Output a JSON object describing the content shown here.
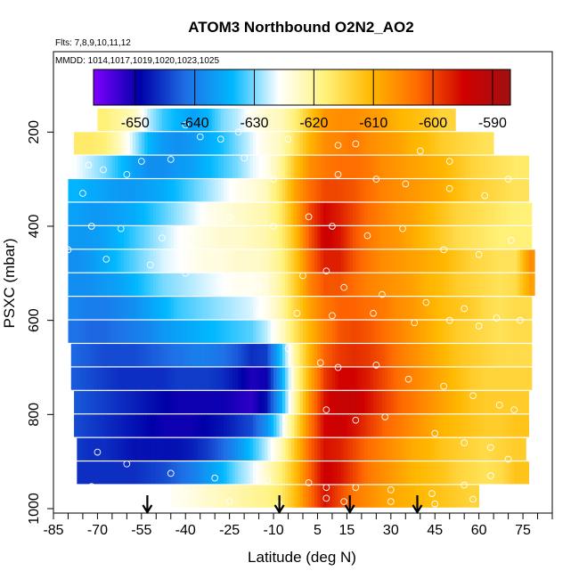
{
  "chart_data": {
    "type": "heatmap",
    "title": "ATOM3 Northbound O2N2_AO2",
    "subtitle_flights": "Flts: 7,8,9,10,11,12",
    "subtitle_dates": "MMDD: 1014,1017,1019,1020,1023,1025",
    "xlabel": "Latitude (deg N)",
    "ylabel": "PSXC (mbar)",
    "xlim": [
      -85,
      85
    ],
    "ylim": [
      1000,
      0
    ],
    "x_ticks": [
      -85,
      -70,
      -55,
      -40,
      -25,
      -10,
      5,
      15,
      30,
      45,
      60,
      75
    ],
    "y_ticks": [
      200,
      400,
      600,
      800,
      1000
    ],
    "colorbar": {
      "range": [
        -657,
        -587
      ],
      "ticks": [
        -650,
        -640,
        -630,
        -620,
        -610,
        -600,
        -590
      ],
      "colors": [
        "#7f00ff",
        "#0000a8",
        "#1f6fe6",
        "#00b8ff",
        "#ffffff",
        "#fff27a",
        "#ffb800",
        "#ff6a00",
        "#d00000",
        "#a01010"
      ]
    },
    "lat_bins": [
      -77.5,
      -72.5,
      -67.5,
      -62.5,
      -57.5,
      -52.5,
      -47.5,
      -42.5,
      -37.5,
      -32.5,
      -27.5,
      -22.5,
      -17.5,
      -12.5,
      -7.5,
      -2.5,
      2.5,
      7.5,
      12.5,
      17.5,
      22.5,
      27.5,
      32.5,
      37.5,
      42.5,
      47.5,
      52.5,
      57.5,
      62.5,
      67.5,
      72.5,
      77.5
    ],
    "rows": [
      {
        "p": 175,
        "xr": [
          -70,
          52
        ],
        "v": [
          null,
          null,
          -618,
          -620,
          -622,
          -628,
          -632,
          -634,
          -636,
          -634,
          -630,
          -628,
          -625,
          -623,
          -622,
          -618,
          -612,
          -607,
          -606,
          -606,
          -607,
          -608,
          -610,
          -611,
          -612,
          -614,
          null,
          null,
          null,
          null,
          null,
          null
        ]
      },
      {
        "p": 225,
        "xr": [
          -78,
          65
        ],
        "v": [
          -617,
          -617,
          -618,
          -622,
          -628,
          -634,
          -637,
          -638,
          -637,
          -635,
          -633,
          -630,
          -627,
          -624,
          -622,
          -616,
          -610,
          -606,
          -605,
          -604,
          -606,
          -607,
          -608,
          -610,
          -611,
          -613,
          -614,
          -615,
          -616,
          null,
          null,
          null
        ]
      },
      {
        "p": 275,
        "xr": [
          -79,
          77
        ],
        "v": [
          -626,
          -628,
          -630,
          -633,
          -636,
          -638,
          -638,
          -637,
          -636,
          -634,
          -632,
          -630,
          -627,
          -625,
          -620,
          -612,
          -606,
          -604,
          -603,
          -603,
          -604,
          -606,
          -607,
          -608,
          -609,
          -610,
          -612,
          -614,
          -615,
          -616,
          -617,
          null
        ]
      },
      {
        "p": 325,
        "xr": [
          -80,
          77
        ],
        "v": [
          -634,
          -635,
          -636,
          -637,
          -637,
          -636,
          -635,
          -633,
          -631,
          -629,
          -627,
          -625,
          -624,
          -622,
          -616,
          -608,
          -603,
          -600,
          -600,
          -601,
          -603,
          -605,
          -606,
          -607,
          -608,
          -609,
          -611,
          -613,
          -614,
          -615,
          -616,
          null
        ]
      },
      {
        "p": 375,
        "xr": [
          -80,
          78
        ],
        "v": [
          -636,
          -637,
          -637,
          -636,
          -635,
          -633,
          -631,
          -629,
          -627,
          -625,
          -624,
          -623,
          -622,
          -621,
          -617,
          -609,
          -600,
          -595,
          -597,
          -600,
          -603,
          -605,
          -607,
          -608,
          -610,
          -612,
          -614,
          -615,
          -616,
          -617,
          -618,
          null
        ]
      },
      {
        "p": 425,
        "xr": [
          -80,
          78
        ],
        "v": [
          -637,
          -637,
          -636,
          -634,
          -632,
          -630,
          -628,
          -626,
          -625,
          -624,
          -623,
          -623,
          -622,
          -621,
          -618,
          -611,
          -601,
          -594,
          -596,
          -601,
          -604,
          -606,
          -607,
          -609,
          -611,
          -613,
          -615,
          -616,
          -617,
          -618,
          -618,
          null
        ]
      },
      {
        "p": 475,
        "xr": [
          -80,
          79
        ],
        "v": [
          -638,
          -637,
          -635,
          -633,
          -631,
          -629,
          -627,
          -626,
          -625,
          -624,
          -624,
          -623,
          -623,
          -622,
          -619,
          -612,
          -603,
          -597,
          -597,
          -601,
          -604,
          -606,
          -607,
          -608,
          -609,
          -610,
          -612,
          -614,
          -615,
          -616,
          -616,
          -606
        ]
      },
      {
        "p": 525,
        "xr": [
          -80,
          79
        ],
        "v": [
          -638,
          -638,
          -637,
          -636,
          -634,
          -632,
          -630,
          -629,
          -628,
          -627,
          -626,
          -625,
          -625,
          -624,
          -620,
          -613,
          -605,
          -601,
          -601,
          -603,
          -605,
          -606,
          -607,
          -608,
          -610,
          -611,
          -613,
          -614,
          -615,
          -616,
          -615,
          -608
        ]
      },
      {
        "p": 575,
        "xr": [
          -80,
          78
        ],
        "v": [
          -639,
          -640,
          -640,
          -639,
          -638,
          -636,
          -634,
          -632,
          -631,
          -630,
          -629,
          -628,
          -627,
          -625,
          -621,
          -614,
          -608,
          -604,
          -602,
          -602,
          -603,
          -604,
          -606,
          -607,
          -609,
          -611,
          -612,
          -613,
          -615,
          -616,
          -615,
          null
        ]
      },
      {
        "p": 625,
        "xr": [
          -80,
          78
        ],
        "v": [
          -641,
          -642,
          -642,
          -641,
          -640,
          -639,
          -637,
          -636,
          -635,
          -634,
          -633,
          -632,
          -631,
          -628,
          -623,
          -616,
          -610,
          -605,
          -601,
          -600,
          -601,
          -603,
          -605,
          -607,
          -609,
          -611,
          -613,
          -614,
          -615,
          -616,
          -615,
          null
        ]
      },
      {
        "p": 675,
        "xr": [
          -79,
          78
        ],
        "v": [
          -642,
          -643,
          -644,
          -644,
          -644,
          -643,
          -642,
          -641,
          -640,
          -640,
          -641,
          -643,
          -646,
          -645,
          -633,
          -620,
          -610,
          -602,
          -599,
          -598,
          -599,
          -601,
          -604,
          -606,
          -608,
          -610,
          -612,
          -613,
          -614,
          -615,
          -615,
          null
        ]
      },
      {
        "p": 725,
        "xr": [
          -79,
          78
        ],
        "v": [
          -643,
          -644,
          -645,
          -646,
          -646,
          -646,
          -646,
          -645,
          -645,
          -645,
          -646,
          -648,
          -651,
          -650,
          -636,
          -621,
          -609,
          -599,
          -595,
          -595,
          -597,
          -600,
          -603,
          -605,
          -607,
          -609,
          -611,
          -613,
          -614,
          -614,
          -614,
          null
        ]
      },
      {
        "p": 775,
        "xr": [
          -78,
          77
        ],
        "v": [
          -643,
          -644,
          -645,
          -646,
          -647,
          -648,
          -649,
          -650,
          -650,
          -650,
          -650,
          -651,
          -652,
          -648,
          -635,
          -620,
          -606,
          -596,
          -593,
          -593,
          -596,
          -599,
          -602,
          -604,
          -606,
          -608,
          -610,
          -612,
          -613,
          -613,
          -613,
          null
        ]
      },
      {
        "p": 825,
        "xr": [
          -78,
          77
        ],
        "v": [
          -644,
          -645,
          -646,
          -647,
          -648,
          -649,
          -650,
          -650,
          -650,
          -649,
          -648,
          -646,
          -644,
          -638,
          -628,
          -616,
          -604,
          -595,
          -594,
          -596,
          -599,
          -602,
          -604,
          -606,
          -608,
          -610,
          -611,
          -612,
          -613,
          -613,
          -612,
          null
        ]
      },
      {
        "p": 875,
        "xr": [
          -77,
          76
        ],
        "v": [
          -645,
          -646,
          -646,
          -647,
          -648,
          -648,
          -648,
          -648,
          -647,
          -645,
          -642,
          -638,
          -633,
          -628,
          -622,
          -612,
          -602,
          -596,
          -597,
          -600,
          -603,
          -605,
          -607,
          -609,
          -610,
          -612,
          -613,
          -614,
          -615,
          -614,
          -613,
          null
        ]
      },
      {
        "p": 925,
        "xr": [
          -77,
          77
        ],
        "v": [
          -646,
          -646,
          -646,
          -646,
          -646,
          -645,
          -644,
          -642,
          -640,
          -637,
          -634,
          -630,
          -627,
          -623,
          -618,
          -611,
          -602,
          -594,
          -596,
          -600,
          -604,
          -606,
          -608,
          -610,
          -611,
          -612,
          -614,
          -615,
          -616,
          -615,
          -612,
          null
        ]
      },
      {
        "p": 975,
        "xr": [
          -45,
          60
        ],
        "v": [
          null,
          null,
          null,
          null,
          null,
          null,
          null,
          -625,
          -624,
          -623,
          -622,
          -621,
          -620,
          -619,
          -617,
          -611,
          -603,
          -596,
          -600,
          -604,
          -606,
          -608,
          -609,
          -610,
          -611,
          -612,
          -613,
          -614,
          null,
          null,
          null,
          null
        ]
      }
    ],
    "observations": [
      [
        -60,
        175
      ],
      [
        -40,
        185
      ],
      [
        -22,
        200
      ],
      [
        -14,
        188
      ],
      [
        -20,
        255
      ],
      [
        -45,
        258
      ],
      [
        -55,
        262
      ],
      [
        -60,
        290
      ],
      [
        -73,
        270
      ],
      [
        -75,
        330
      ],
      [
        -82,
        330
      ],
      [
        -68,
        280
      ],
      [
        -35,
        210
      ],
      [
        -28,
        215
      ],
      [
        -5,
        215
      ],
      [
        12,
        228
      ],
      [
        18,
        225
      ],
      [
        40,
        240
      ],
      [
        50,
        262
      ],
      [
        -10,
        300
      ],
      [
        12,
        290
      ],
      [
        25,
        300
      ],
      [
        35,
        310
      ],
      [
        50,
        320
      ],
      [
        62,
        335
      ],
      [
        70,
        300
      ],
      [
        -72,
        400
      ],
      [
        -62,
        405
      ],
      [
        -48,
        425
      ],
      [
        -38,
        410
      ],
      [
        -25,
        380
      ],
      [
        -10,
        400
      ],
      [
        2,
        380
      ],
      [
        10,
        400
      ],
      [
        22,
        420
      ],
      [
        34,
        405
      ],
      [
        48,
        450
      ],
      [
        60,
        460
      ],
      [
        71,
        430
      ],
      [
        -80,
        450
      ],
      [
        -67,
        470
      ],
      [
        -52,
        482
      ],
      [
        -40,
        500
      ],
      [
        -28,
        520
      ],
      [
        -15,
        528
      ],
      [
        0,
        505
      ],
      [
        8,
        495
      ],
      [
        14,
        530
      ],
      [
        27,
        545
      ],
      [
        42,
        562
      ],
      [
        55,
        575
      ],
      [
        66,
        595
      ],
      [
        74,
        600
      ],
      [
        -15,
        585
      ],
      [
        -2,
        585
      ],
      [
        10,
        590
      ],
      [
        24,
        585
      ],
      [
        38,
        605
      ],
      [
        50,
        600
      ],
      [
        60,
        612
      ],
      [
        -5,
        660
      ],
      [
        6,
        690
      ],
      [
        12,
        700
      ],
      [
        25,
        695
      ],
      [
        36,
        725
      ],
      [
        48,
        740
      ],
      [
        58,
        760
      ],
      [
        67,
        780
      ],
      [
        72,
        790
      ],
      [
        8,
        790
      ],
      [
        18,
        812
      ],
      [
        28,
        805
      ],
      [
        45,
        840
      ],
      [
        55,
        860
      ],
      [
        64,
        870
      ],
      [
        70,
        895
      ],
      [
        -70,
        880
      ],
      [
        -60,
        905
      ],
      [
        -45,
        925
      ],
      [
        -30,
        935
      ],
      [
        -12,
        940
      ],
      [
        2,
        945
      ],
      [
        8,
        955
      ],
      [
        18,
        955
      ],
      [
        30,
        960
      ],
      [
        44,
        968
      ],
      [
        55,
        950
      ],
      [
        64,
        930
      ],
      [
        -72,
        953
      ],
      [
        -55,
        958
      ],
      [
        -40,
        970
      ],
      [
        -25,
        985
      ],
      [
        -8,
        990
      ],
      [
        8,
        978
      ],
      [
        14,
        985
      ],
      [
        30,
        985
      ],
      [
        45,
        990
      ],
      [
        58,
        980
      ]
    ],
    "arrows_lat": [
      -53,
      -8,
      16,
      39
    ]
  }
}
